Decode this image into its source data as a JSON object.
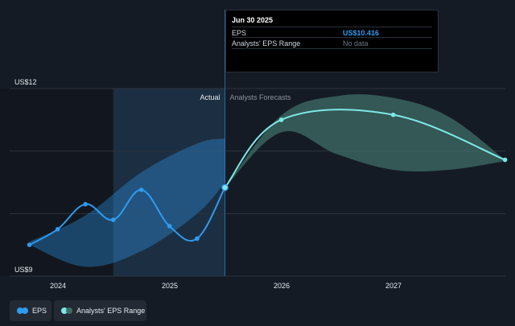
{
  "chart_data": {
    "type": "line",
    "y_axis": {
      "min": 9,
      "max": 12,
      "labels": [
        "US$12",
        "US$9"
      ]
    },
    "x_ticks": [
      "2024",
      "2025",
      "2026",
      "2027"
    ],
    "region_labels": {
      "actual": "Actual",
      "forecast": "Analysts Forecasts"
    },
    "series": [
      {
        "name": "EPS",
        "color": "#2f9bf0",
        "points": [
          {
            "x": "2023-09-30",
            "y": 9.5
          },
          {
            "x": "2023-12-31",
            "y": 9.75
          },
          {
            "x": "2024-03-31",
            "y": 10.15
          },
          {
            "x": "2024-06-30",
            "y": 9.9
          },
          {
            "x": "2024-09-30",
            "y": 10.38
          },
          {
            "x": "2024-12-31",
            "y": 9.8
          },
          {
            "x": "2025-03-31",
            "y": 9.6
          },
          {
            "x": "2025-06-30",
            "y": 10.416
          }
        ]
      },
      {
        "name": "EPS forecast",
        "color": "#7de8e6",
        "points": [
          {
            "x": "2025-06-30",
            "y": 10.416
          },
          {
            "x": "2025-12-31",
            "y": 11.5
          },
          {
            "x": "2026-12-31",
            "y": 11.58
          },
          {
            "x": "2027-12-31",
            "y": 10.86
          }
        ]
      }
    ],
    "eps_band": {
      "color": "#2f9bf0",
      "upper": [
        {
          "x": "2023-09-30",
          "y": 9.55
        },
        {
          "x": "2024-03-31",
          "y": 9.97
        },
        {
          "x": "2024-09-30",
          "y": 10.66
        },
        {
          "x": "2025-03-31",
          "y": 11.12
        },
        {
          "x": "2025-06-30",
          "y": 11.2
        }
      ],
      "lower": [
        {
          "x": "2023-09-30",
          "y": 9.5
        },
        {
          "x": "2024-03-31",
          "y": 9.15
        },
        {
          "x": "2024-09-30",
          "y": 9.4
        },
        {
          "x": "2025-03-31",
          "y": 10.0
        },
        {
          "x": "2025-06-30",
          "y": 10.5
        }
      ]
    },
    "analyst_range": {
      "name": "Analysts' EPS Range",
      "color": "#3d6e66",
      "upper": [
        {
          "x": "2025-06-30",
          "y": 10.416
        },
        {
          "x": "2025-12-31",
          "y": 11.57
        },
        {
          "x": "2026-06-30",
          "y": 11.88
        },
        {
          "x": "2026-12-31",
          "y": 11.85
        },
        {
          "x": "2027-06-30",
          "y": 11.55
        },
        {
          "x": "2027-12-31",
          "y": 10.86
        }
      ],
      "lower": [
        {
          "x": "2025-06-30",
          "y": 10.416
        },
        {
          "x": "2025-12-31",
          "y": 11.3
        },
        {
          "x": "2026-06-30",
          "y": 10.95
        },
        {
          "x": "2026-12-31",
          "y": 10.7
        },
        {
          "x": "2027-06-30",
          "y": 10.7
        },
        {
          "x": "2027-12-31",
          "y": 10.84
        }
      ]
    }
  },
  "tooltip": {
    "date": "Jun 30 2025",
    "rows": [
      {
        "label": "EPS",
        "value": "US$10.416"
      },
      {
        "label": "Analysts' EPS Range",
        "value": "No data"
      }
    ]
  },
  "legend": {
    "eps_label": "EPS",
    "eps_colors": [
      "#2f9bf0",
      "#2f9bf0"
    ],
    "range_label": "Analysts' EPS Range",
    "range_colors": [
      "#7de8e6",
      "#3d6e66"
    ]
  }
}
